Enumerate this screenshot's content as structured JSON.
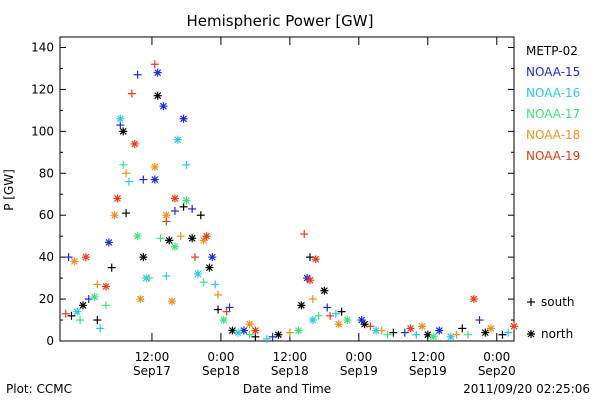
{
  "chart_data": {
    "type": "scatter",
    "title": "Hemispheric Power [GW]",
    "xlabel": "Date and Time",
    "ylabel": "P [GW]",
    "ylim": [
      0,
      145
    ],
    "xlim": [
      "2011-09-16 20:00",
      "2011-09-20 03:00"
    ],
    "yticks": [
      0,
      20,
      40,
      60,
      80,
      100,
      120,
      140
    ],
    "xticks": [
      {
        "time": "2011-09-17 12:00",
        "label": "12:00",
        "sublabel": "Sep17"
      },
      {
        "time": "2011-09-18 00:00",
        "label": "0:00",
        "sublabel": "Sep18"
      },
      {
        "time": "2011-09-18 12:00",
        "label": "12:00",
        "sublabel": "Sep18"
      },
      {
        "time": "2011-09-19 00:00",
        "label": "0:00",
        "sublabel": "Sep19"
      },
      {
        "time": "2011-09-19 12:00",
        "label": "12:00",
        "sublabel": "Sep19"
      },
      {
        "time": "2011-09-20 00:00",
        "label": "0:00",
        "sublabel": "Sep20"
      }
    ],
    "legend": {
      "placement": "right",
      "series": [
        {
          "name": "METP-02",
          "color": "#000000"
        },
        {
          "name": "NOAA-15",
          "color": "#1a2ad8"
        },
        {
          "name": "NOAA-16",
          "color": "#2cc6e8"
        },
        {
          "name": "NOAA-17",
          "color": "#3ee07a"
        },
        {
          "name": "NOAA-18",
          "color": "#f0901c"
        },
        {
          "name": "NOAA-19",
          "color": "#e83a14"
        }
      ],
      "markers": [
        {
          "symbol": "+",
          "label": "south"
        },
        {
          "symbol": "*",
          "label": "north"
        }
      ]
    },
    "series": [
      {
        "name": "METP-02",
        "points": [
          [
            "2011-09-16 22:00",
            12,
            "+"
          ],
          [
            "2011-09-17 00:00",
            17,
            "*"
          ],
          [
            "2011-09-17 02:30",
            10,
            "+"
          ],
          [
            "2011-09-17 05:00",
            35,
            "+"
          ],
          [
            "2011-09-17 07:00",
            100,
            "*"
          ],
          [
            "2011-09-17 07:30",
            61,
            "+"
          ],
          [
            "2011-09-17 10:30",
            40,
            "*"
          ],
          [
            "2011-09-17 13:00",
            117,
            "*"
          ],
          [
            "2011-09-17 15:00",
            48,
            "*"
          ],
          [
            "2011-09-17 17:30",
            64,
            "+"
          ],
          [
            "2011-09-17 19:00",
            49,
            "*"
          ],
          [
            "2011-09-17 20:30",
            60,
            "+"
          ],
          [
            "2011-09-17 22:00",
            35,
            "*"
          ],
          [
            "2011-09-17 23:30",
            15,
            "+"
          ],
          [
            "2011-09-18 02:00",
            5,
            "*"
          ],
          [
            "2011-09-18 06:00",
            2,
            "+"
          ],
          [
            "2011-09-18 10:00",
            3,
            "*"
          ],
          [
            "2011-09-18 14:00",
            17,
            "*"
          ],
          [
            "2011-09-18 15:30",
            40,
            "+"
          ],
          [
            "2011-09-18 18:00",
            24,
            "*"
          ],
          [
            "2011-09-18 21:00",
            14,
            "+"
          ],
          [
            "2011-09-19 01:00",
            8,
            "*"
          ],
          [
            "2011-09-19 06:00",
            4,
            "+"
          ],
          [
            "2011-09-19 12:00",
            3,
            "*"
          ],
          [
            "2011-09-19 18:00",
            6,
            "+"
          ],
          [
            "2011-09-19 22:00",
            4,
            "*"
          ],
          [
            "2011-09-20 01:00",
            3,
            "+"
          ]
        ]
      },
      {
        "name": "NOAA-15",
        "points": [
          [
            "2011-09-16 21:30",
            40,
            "+"
          ],
          [
            "2011-09-17 01:00",
            20,
            "+"
          ],
          [
            "2011-09-17 04:30",
            47,
            "*"
          ],
          [
            "2011-09-17 06:30",
            103,
            "+"
          ],
          [
            "2011-09-17 09:30",
            127,
            "+"
          ],
          [
            "2011-09-17 10:30",
            77,
            "+"
          ],
          [
            "2011-09-17 12:30",
            77,
            "*"
          ],
          [
            "2011-09-17 13:00",
            128,
            "*"
          ],
          [
            "2011-09-17 14:00",
            112,
            "*"
          ],
          [
            "2011-09-17 16:00",
            62,
            "+"
          ],
          [
            "2011-09-17 17:30",
            106,
            "*"
          ],
          [
            "2011-09-17 19:00",
            63,
            "+"
          ],
          [
            "2011-09-17 22:30",
            40,
            "*"
          ],
          [
            "2011-09-18 01:30",
            16,
            "+"
          ],
          [
            "2011-09-18 04:00",
            5,
            "*"
          ],
          [
            "2011-09-18 09:00",
            2,
            "+"
          ],
          [
            "2011-09-18 15:00",
            30,
            "*"
          ],
          [
            "2011-09-18 18:30",
            16,
            "+"
          ],
          [
            "2011-09-19 00:30",
            10,
            "*"
          ],
          [
            "2011-09-19 08:00",
            4,
            "+"
          ],
          [
            "2011-09-19 14:00",
            5,
            "*"
          ],
          [
            "2011-09-19 21:00",
            10,
            "+"
          ]
        ]
      },
      {
        "name": "NOAA-16",
        "points": [
          [
            "2011-09-16 23:00",
            14,
            "*"
          ],
          [
            "2011-09-17 03:00",
            6,
            "+"
          ],
          [
            "2011-09-17 06:30",
            106,
            "*"
          ],
          [
            "2011-09-17 08:00",
            76,
            "+"
          ],
          [
            "2011-09-17 11:00",
            30,
            "*"
          ],
          [
            "2011-09-17 14:30",
            31,
            "+"
          ],
          [
            "2011-09-17 16:30",
            96,
            "*"
          ],
          [
            "2011-09-17 18:00",
            84,
            "+"
          ],
          [
            "2011-09-17 20:00",
            32,
            "*"
          ],
          [
            "2011-09-17 23:00",
            27,
            "+"
          ],
          [
            "2011-09-18 03:00",
            4,
            "*"
          ],
          [
            "2011-09-18 08:00",
            1,
            "+"
          ],
          [
            "2011-09-18 16:00",
            10,
            "*"
          ],
          [
            "2011-09-18 20:00",
            13,
            "+"
          ],
          [
            "2011-09-19 03:00",
            5,
            "*"
          ],
          [
            "2011-09-19 10:00",
            3,
            "+"
          ],
          [
            "2011-09-19 16:00",
            2,
            "*"
          ],
          [
            "2011-09-20 02:00",
            4,
            "+"
          ]
        ]
      },
      {
        "name": "NOAA-17",
        "points": [
          [
            "2011-09-16 23:30",
            10,
            "+"
          ],
          [
            "2011-09-17 02:00",
            21,
            "*"
          ],
          [
            "2011-09-17 04:00",
            17,
            "+"
          ],
          [
            "2011-09-17 07:00",
            84,
            "+"
          ],
          [
            "2011-09-17 09:30",
            50,
            "*"
          ],
          [
            "2011-09-17 11:30",
            30,
            "+"
          ],
          [
            "2011-09-17 13:30",
            49,
            "+"
          ],
          [
            "2011-09-17 16:00",
            45,
            "*"
          ],
          [
            "2011-09-17 18:00",
            67,
            "*"
          ],
          [
            "2011-09-17 21:00",
            28,
            "+"
          ],
          [
            "2011-09-18 00:30",
            10,
            "*"
          ],
          [
            "2011-09-18 05:00",
            3,
            "+"
          ],
          [
            "2011-09-18 13:30",
            5,
            "*"
          ],
          [
            "2011-09-18 17:00",
            12,
            "+"
          ],
          [
            "2011-09-18 22:00",
            10,
            "*"
          ],
          [
            "2011-09-19 05:00",
            3,
            "+"
          ],
          [
            "2011-09-19 13:00",
            2,
            "*"
          ],
          [
            "2011-09-19 19:00",
            3,
            "+"
          ]
        ]
      },
      {
        "name": "NOAA-18",
        "points": [
          [
            "2011-09-16 22:30",
            38,
            "*"
          ],
          [
            "2011-09-17 02:30",
            27,
            "+"
          ],
          [
            "2011-09-17 05:30",
            60,
            "*"
          ],
          [
            "2011-09-17 07:30",
            80,
            "+"
          ],
          [
            "2011-09-17 10:00",
            20,
            "*"
          ],
          [
            "2011-09-17 12:30",
            83,
            "*"
          ],
          [
            "2011-09-17 14:30",
            60,
            "*"
          ],
          [
            "2011-09-17 15:30",
            19,
            "*"
          ],
          [
            "2011-09-17 17:00",
            50,
            "+"
          ],
          [
            "2011-09-17 21:00",
            48,
            "*"
          ],
          [
            "2011-09-17 23:30",
            22,
            "+"
          ],
          [
            "2011-09-18 05:00",
            8,
            "*"
          ],
          [
            "2011-09-18 12:00",
            4,
            "+"
          ],
          [
            "2011-09-18 16:00",
            20,
            "+"
          ],
          [
            "2011-09-18 20:30",
            8,
            "*"
          ],
          [
            "2011-09-19 04:00",
            5,
            "+"
          ],
          [
            "2011-09-19 11:00",
            7,
            "*"
          ],
          [
            "2011-09-19 17:00",
            3,
            "+"
          ],
          [
            "2011-09-19 23:00",
            6,
            "*"
          ]
        ]
      },
      {
        "name": "NOAA-19",
        "points": [
          [
            "2011-09-16 21:00",
            13,
            "+"
          ],
          [
            "2011-09-17 00:30",
            40,
            "*"
          ],
          [
            "2011-09-17 04:00",
            26,
            "*"
          ],
          [
            "2011-09-17 06:00",
            68,
            "*"
          ],
          [
            "2011-09-17 08:30",
            118,
            "+"
          ],
          [
            "2011-09-17 09:00",
            94,
            "*"
          ],
          [
            "2011-09-17 12:30",
            132,
            "+"
          ],
          [
            "2011-09-17 14:30",
            57,
            "+"
          ],
          [
            "2011-09-17 16:00",
            68,
            "*"
          ],
          [
            "2011-09-17 19:30",
            40,
            "+"
          ],
          [
            "2011-09-17 21:30",
            50,
            "*"
          ],
          [
            "2011-09-18 01:00",
            14,
            "+"
          ],
          [
            "2011-09-18 06:00",
            5,
            "*"
          ],
          [
            "2011-09-18 14:30",
            51,
            "+"
          ],
          [
            "2011-09-18 15:30",
            29,
            "*"
          ],
          [
            "2011-09-18 16:30",
            39,
            "*"
          ],
          [
            "2011-09-18 19:00",
            12,
            "+"
          ],
          [
            "2011-09-19 02:00",
            7,
            "+"
          ],
          [
            "2011-09-19 09:00",
            6,
            "*"
          ],
          [
            "2011-09-19 20:00",
            20,
            "*"
          ],
          [
            "2011-09-20 03:00",
            7,
            "*"
          ]
        ]
      }
    ]
  },
  "footer": {
    "plot_label": "Plot: CCMC",
    "timestamp": "2011/09/20 02:25:06"
  }
}
